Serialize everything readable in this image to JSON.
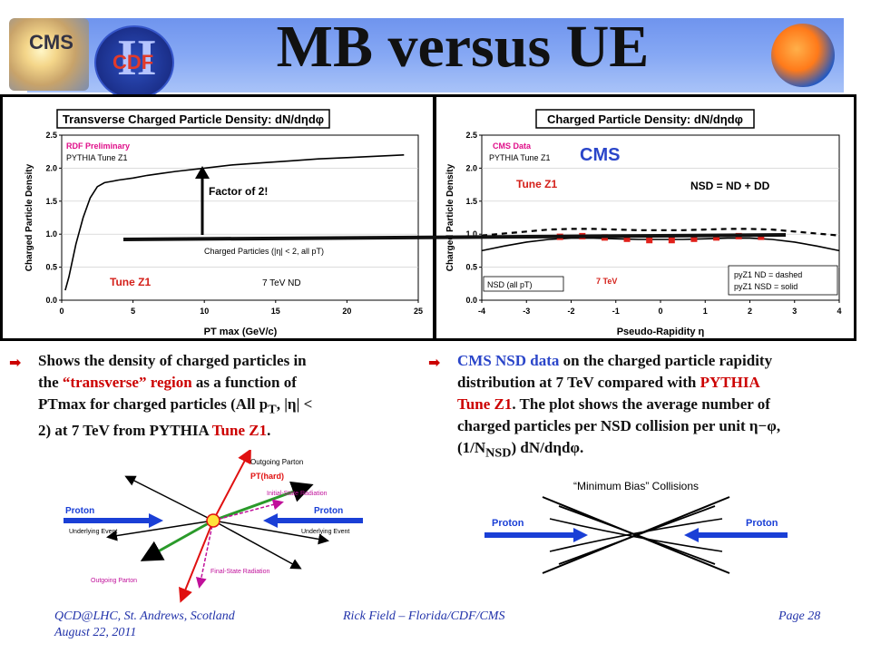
{
  "title": "MB versus UE",
  "logos": {
    "cms": "CMS",
    "cdf": "CDF",
    "cdf_roman": "II"
  },
  "left_chart": {
    "chart_data": {
      "type": "line",
      "title": "Transverse Charged Particle Density: dN/dηdφ",
      "xlabel": "PT max (GeV/c)",
      "ylabel": "Charged Particle Density",
      "xlim": [
        0,
        25
      ],
      "ylim": [
        0,
        2.5
      ],
      "xticks": [
        "0",
        "5",
        "10",
        "15",
        "20",
        "25"
      ],
      "yticks": [
        "0.0",
        "0.5",
        "1.0",
        "1.5",
        "2.0",
        "2.5"
      ],
      "legend": [
        "RDF Preliminary",
        "PYTHIA Tune Z1"
      ],
      "annotation": "Charged Particles (|η| < 2, all pT)",
      "label_tune": "Tune Z1",
      "label_energy": "7 TeV ND",
      "factor_label": "Factor of 2!",
      "series": [
        {
          "name": "PYTHIA Tune Z1",
          "color": "#000000",
          "x": [
            0.25,
            0.5,
            1,
            1.5,
            2,
            2.5,
            3,
            3.5,
            4,
            5,
            6,
            7,
            8,
            10,
            12,
            14,
            16,
            18,
            20,
            22,
            24
          ],
          "y": [
            0.15,
            0.35,
            0.85,
            1.25,
            1.55,
            1.72,
            1.78,
            1.8,
            1.82,
            1.85,
            1.89,
            1.92,
            1.95,
            2.0,
            2.05,
            2.08,
            2.11,
            2.14,
            2.16,
            2.18,
            2.2
          ]
        }
      ]
    }
  },
  "right_chart": {
    "chart_data": {
      "type": "line",
      "title": "Charged Particle Density: dN/dηdφ",
      "xlabel": "Pseudo-Rapidity η",
      "ylabel": "Charged Particle Density",
      "xlim": [
        -4,
        4
      ],
      "ylim": [
        0,
        2.5
      ],
      "xticks": [
        "-4",
        "-3",
        "-2",
        "-1",
        "0",
        "1",
        "2",
        "3",
        "4"
      ],
      "yticks": [
        "0.0",
        "0.5",
        "1.0",
        "1.5",
        "2.0",
        "2.5"
      ],
      "legend": [
        "CMS Data",
        "PYTHIA Tune Z1"
      ],
      "overlay_label": "CMS",
      "label_tune": "Tune Z1",
      "nsd_eq": "NSD = ND + DD",
      "label_nsd": "NSD (all pT)",
      "label_energy": "7 TeV",
      "legend_nd": "pyZ1 ND = dashed",
      "legend_nsd": "pyZ1 NSD = solid",
      "series": [
        {
          "name": "CMS Data",
          "color": "#e0201a",
          "x": [
            -2.25,
            -1.75,
            -1.25,
            -0.75,
            -0.25,
            0.25,
            0.75,
            1.25,
            1.75,
            2.25
          ],
          "y": [
            0.96,
            0.97,
            0.95,
            0.93,
            0.91,
            0.91,
            0.93,
            0.95,
            0.97,
            0.96
          ]
        },
        {
          "name": "pyZ1 ND = dashed",
          "color": "#000000",
          "x": [
            -4,
            -3.5,
            -3,
            -2.5,
            -2,
            -1.5,
            -1,
            -0.5,
            0,
            0.5,
            1,
            1.5,
            2,
            2.5,
            3,
            3.5,
            4
          ],
          "y": [
            0.98,
            1.01,
            1.04,
            1.07,
            1.08,
            1.08,
            1.07,
            1.06,
            1.06,
            1.06,
            1.07,
            1.08,
            1.08,
            1.07,
            1.04,
            1.01,
            0.98
          ]
        },
        {
          "name": "pyZ1 NSD = solid",
          "color": "#000000",
          "x": [
            -4,
            -3.5,
            -3,
            -2.5,
            -2,
            -1.5,
            -1,
            -0.5,
            0,
            0.5,
            1,
            1.5,
            2,
            2.5,
            3,
            3.5,
            4
          ],
          "y": [
            0.75,
            0.82,
            0.88,
            0.92,
            0.94,
            0.94,
            0.93,
            0.92,
            0.92,
            0.92,
            0.93,
            0.94,
            0.94,
            0.92,
            0.88,
            0.82,
            0.75
          ]
        }
      ]
    }
  },
  "bullets": {
    "left": {
      "l1": "Shows the density of charged particles in",
      "l2a": "the ",
      "l2b": "“transverse” region",
      "l2c": " as a function of",
      "l3a": "PTmax for charged particles (All p",
      "l3sub": "T",
      "l3b": ", |η| <",
      "l4a": "2) at 7 TeV from PYTHIA ",
      "l4b": "Tune Z1",
      "l4c": "."
    },
    "right": {
      "l1a": "CMS NSD data",
      "l1b": " on the charged particle rapidity",
      "l2a": "distribution at 7 TeV compared with ",
      "l2b": "PYTHIA",
      "l3a": "Tune Z1",
      "l3b": ".  The plot shows the average number of",
      "l4": "charged particles per NSD collision per unit η−φ,",
      "l5a": "(1/N",
      "l5sub": "NSD",
      "l5b": ") dN/dηdφ."
    }
  },
  "diagram_left": {
    "proton_left": "Proton",
    "proton_right": "Proton",
    "outgoing_top": "Outgoing Parton",
    "pt_hard": "PT(hard)",
    "isr": "Initial-State Radiation",
    "ue_left": "Underlying Event",
    "ue_right": "Underlying Event",
    "outgoing_bottom": "Outgoing Parton",
    "fsr": "Final-State Radiation"
  },
  "diagram_right": {
    "title": "“Minimum Bias” Collisions",
    "proton_left": "Proton",
    "proton_right": "Proton"
  },
  "footer": {
    "left1": "QCD@LHC, St. Andrews, Scotland",
    "left2": "August 22, 2011",
    "center": "Rick Field – Florida/CDF/CMS",
    "right": "Page 28"
  }
}
